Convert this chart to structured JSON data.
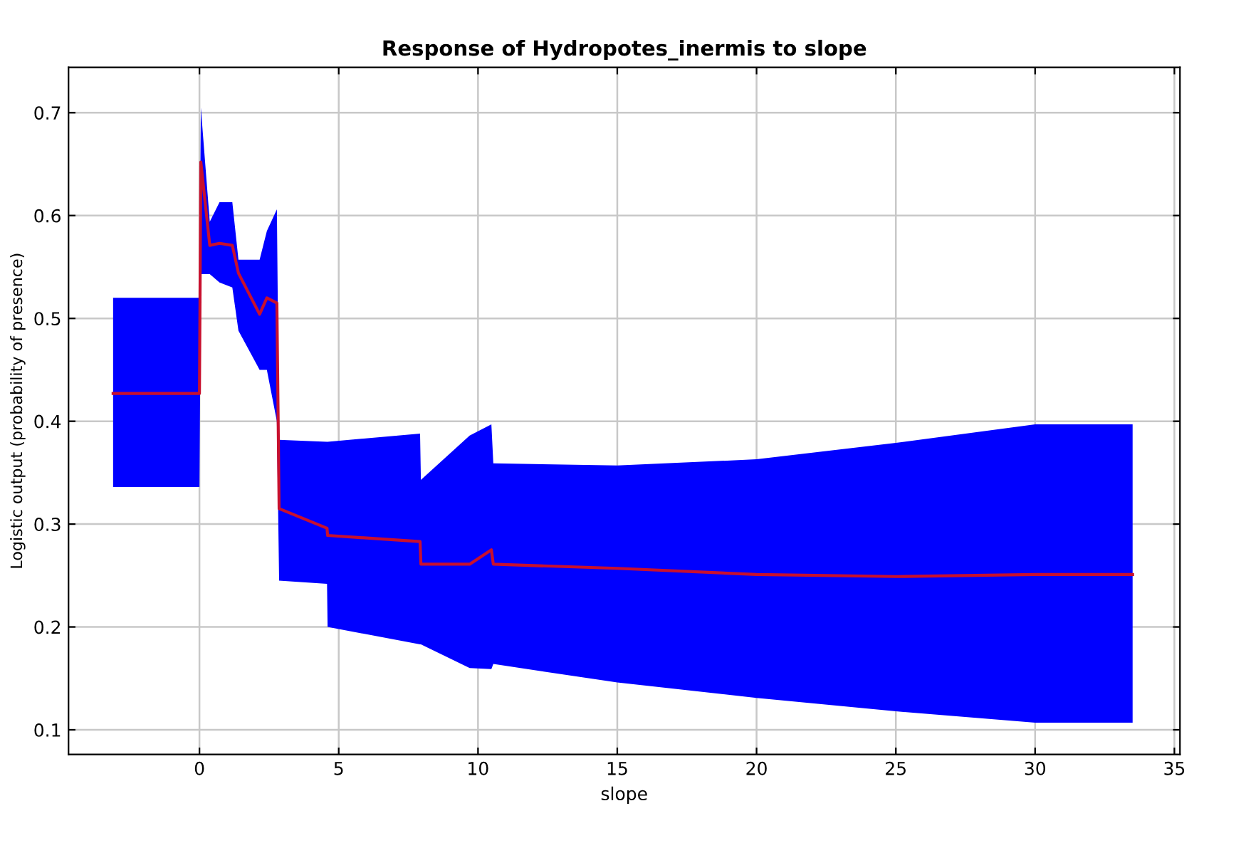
{
  "chart_data": {
    "type": "line",
    "title": "Response of Hydropotes_inermis to slope",
    "xlabel": "slope",
    "ylabel": "Logistic output (probability of presence)",
    "xlim": [
      -4.7,
      35.2
    ],
    "ylim": [
      0.076,
      0.744
    ],
    "xticks": [
      0,
      5,
      10,
      15,
      20,
      25,
      30,
      35
    ],
    "yticks": [
      0.1,
      0.2,
      0.3,
      0.4,
      0.5,
      0.6,
      0.7
    ],
    "grid": true,
    "legend": false,
    "series": [
      {
        "color": "#c8102e",
        "x": [
          -3.1,
          0.0,
          0.05,
          0.37,
          0.72,
          1.18,
          1.4,
          2.16,
          2.42,
          2.78,
          2.86,
          4.58,
          4.6,
          7.92,
          7.95,
          9.7,
          10.48,
          10.55,
          15,
          20,
          25,
          30,
          33.5
        ],
        "values": [
          0.427,
          0.427,
          0.652,
          0.571,
          0.573,
          0.571,
          0.544,
          0.504,
          0.52,
          0.515,
          0.315,
          0.296,
          0.289,
          0.283,
          0.261,
          0.261,
          0.275,
          0.261,
          0.257,
          0.251,
          0.249,
          0.251,
          0.251
        ],
        "lower": [
          0.336,
          0.336,
          0.543,
          0.543,
          0.535,
          0.53,
          0.488,
          0.45,
          0.45,
          0.4,
          0.245,
          0.242,
          0.2,
          0.183,
          0.183,
          0.16,
          0.159,
          0.164,
          0.146,
          0.131,
          0.118,
          0.107,
          0.107
        ],
        "upper": [
          0.52,
          0.52,
          0.705,
          0.594,
          0.613,
          0.613,
          0.557,
          0.557,
          0.585,
          0.606,
          0.382,
          0.38,
          0.38,
          0.388,
          0.343,
          0.386,
          0.397,
          0.359,
          0.357,
          0.363,
          0.379,
          0.397,
          0.397
        ]
      }
    ]
  }
}
